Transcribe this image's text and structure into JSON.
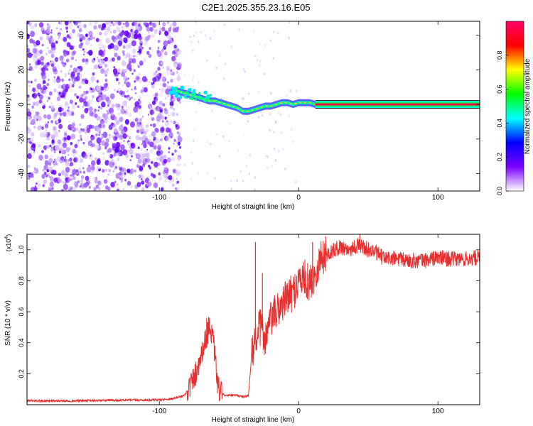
{
  "figure": {
    "title": "C2E1.2025.355.23.16.E05"
  },
  "chart_data": [
    {
      "type": "heatmap",
      "name": "spectrogram",
      "xlabel": "Height of straight line (km)",
      "ylabel": "Frequency (Hz)",
      "xlim": [
        -195,
        130
      ],
      "ylim": [
        -50,
        48
      ],
      "xticks": [
        -100,
        0,
        100
      ],
      "xtick_labels": [
        "-100",
        "0",
        "100"
      ],
      "yticks": [
        -40,
        -20,
        0,
        20,
        40
      ],
      "ytick_labels": [
        "-40",
        "-20",
        "0",
        "20",
        "40"
      ],
      "noise_region_x": [
        -195,
        -88
      ],
      "track": {
        "x": [
          -92,
          -88,
          -84,
          -80,
          -76,
          -72,
          -68,
          -64,
          -60,
          -56,
          -52,
          -48,
          -44,
          -40,
          -36,
          -32,
          -28,
          -24,
          -20,
          -16,
          -12,
          -8,
          -4,
          0,
          4,
          8,
          12,
          130
        ],
        "freq": [
          7,
          8,
          7,
          6,
          5,
          4,
          3,
          2,
          2,
          1,
          0,
          -1,
          -2,
          -4,
          -4,
          -3,
          -2,
          -1,
          -1,
          0,
          1,
          1,
          0,
          1,
          1,
          1,
          0,
          0
        ]
      },
      "colorbar": {
        "label": "Normalized spectral amplitude",
        "range": [
          0,
          1
        ],
        "ticks": [
          0.0,
          0.2,
          0.4,
          0.6,
          0.8
        ],
        "tick_labels": [
          "0.0",
          "0.2",
          "0.4",
          "0.6",
          "0.8"
        ],
        "stops": [
          "#ffffff",
          "#7b00ff",
          "#0000ff",
          "#00ffff",
          "#00ff00",
          "#ffff00",
          "#ff0000",
          "#ff0066"
        ]
      }
    },
    {
      "type": "line",
      "name": "snr",
      "xlabel": "Height of straight line (km)",
      "ylabel": "SNR (10 * v/v)",
      "scale_label": "(x10",
      "scale_exp": "4",
      "scale_close": ")",
      "xlim": [
        -195,
        130
      ],
      "ylim": [
        0,
        1.1
      ],
      "xticks": [
        -100,
        0,
        100
      ],
      "xtick_labels": [
        "-100",
        "0",
        "100"
      ],
      "yticks": [
        0.2,
        0.4,
        0.6,
        0.8,
        1.0
      ],
      "ytick_labels": [
        "0.2",
        "0.4",
        "0.6",
        "0.8",
        "1.0"
      ],
      "color": "#e53030",
      "x": [
        -195,
        -160,
        -120,
        -100,
        -90,
        -82,
        -78,
        -74,
        -70,
        -66,
        -64,
        -62,
        -60,
        -58,
        -56,
        -52,
        -48,
        -44,
        -40,
        -36,
        -34,
        -32,
        -30,
        -28,
        -26,
        -24,
        -20,
        -16,
        -12,
        -8,
        -4,
        0,
        4,
        8,
        12,
        16,
        20,
        26,
        30,
        36,
        40,
        44,
        50,
        56,
        60,
        70,
        80,
        90,
        100,
        110,
        120,
        130
      ],
      "y": [
        0.025,
        0.025,
        0.03,
        0.03,
        0.04,
        0.06,
        0.12,
        0.2,
        0.32,
        0.44,
        0.52,
        0.45,
        0.3,
        0.12,
        0.07,
        0.06,
        0.06,
        0.06,
        0.05,
        0.06,
        0.28,
        0.4,
        0.45,
        0.5,
        0.48,
        0.42,
        0.55,
        0.6,
        0.65,
        0.7,
        0.72,
        0.8,
        0.82,
        0.78,
        0.85,
        0.95,
        0.97,
        1.0,
        1.02,
        1.0,
        1.02,
        1.03,
        1.0,
        0.98,
        0.95,
        0.94,
        0.93,
        0.93,
        0.95,
        0.94,
        0.94,
        0.95
      ],
      "spikes": [
        {
          "x": -66,
          "y": 0.56
        },
        {
          "x": -31,
          "y": 1.05
        },
        {
          "x": -26,
          "y": 0.85
        },
        {
          "x": 10,
          "y": 1.05
        },
        {
          "x": 44,
          "y": 1.1
        }
      ]
    }
  ]
}
